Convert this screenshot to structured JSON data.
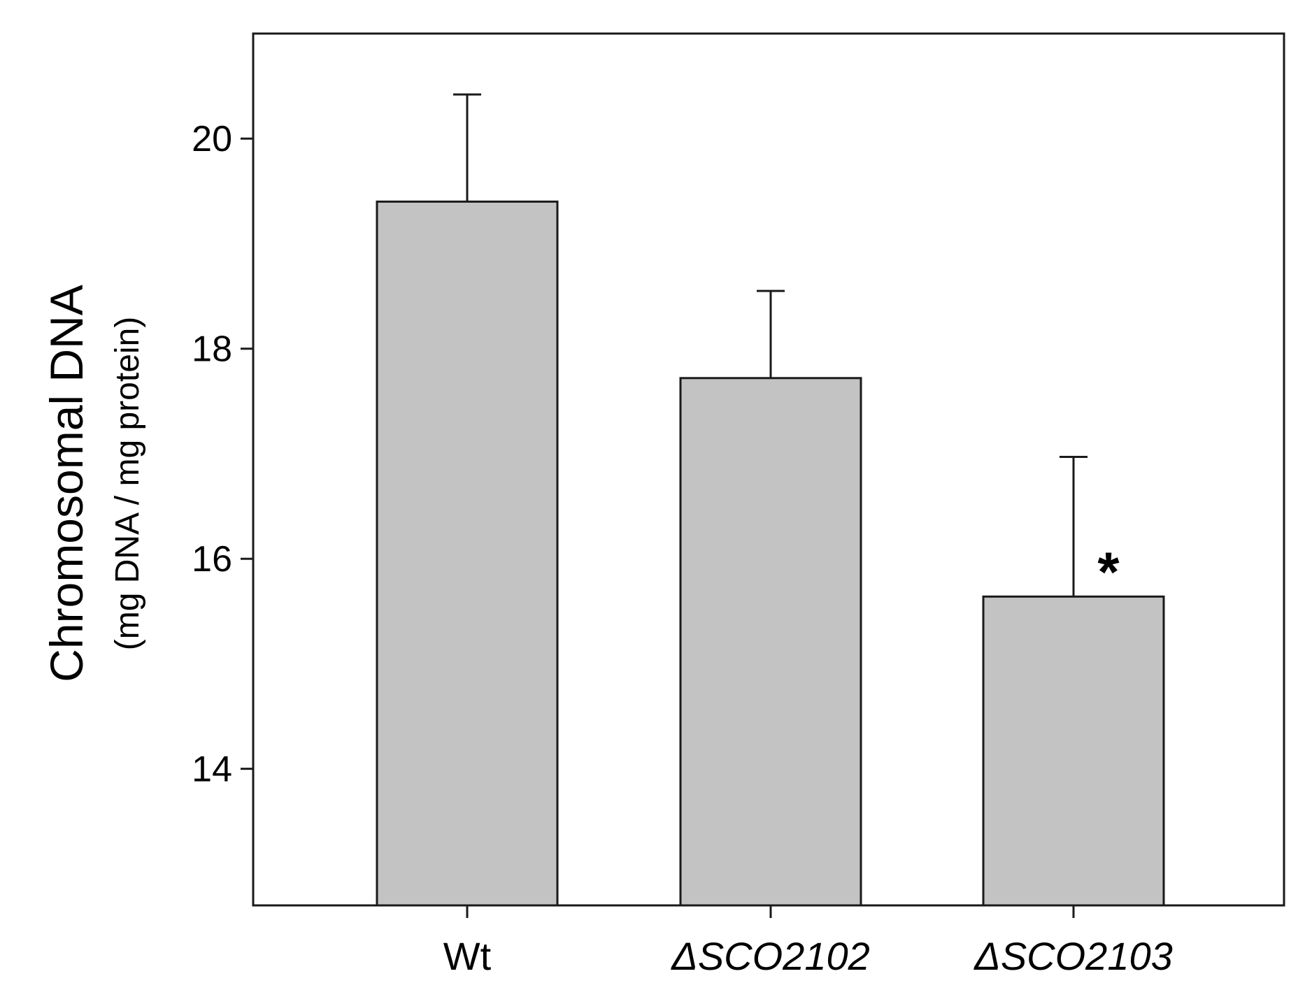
{
  "chart_data": {
    "type": "bar",
    "title": "",
    "ylabel": "Chromosomal DNA",
    "ylabel_sub": "(mg DNA / mg protein)",
    "xlabel": "",
    "categories": [
      "Wt",
      "ΔSCO2102",
      "ΔSCO2103"
    ],
    "category_italic": [
      false,
      true,
      true
    ],
    "values": [
      19.4,
      17.72,
      15.64
    ],
    "error_upper": [
      1.02,
      0.83,
      1.33
    ],
    "ylim": [
      12.7,
      21
    ],
    "yticks": [
      14,
      16,
      18,
      20
    ],
    "ytick_labels": [
      "14",
      "16",
      "18",
      "20"
    ],
    "annotations": [
      {
        "category": "ΔSCO2103",
        "text": "*"
      }
    ],
    "grid": false,
    "legend": "none",
    "bar_color": "#c3c3c3",
    "edge_color": "#1a1a1a"
  }
}
